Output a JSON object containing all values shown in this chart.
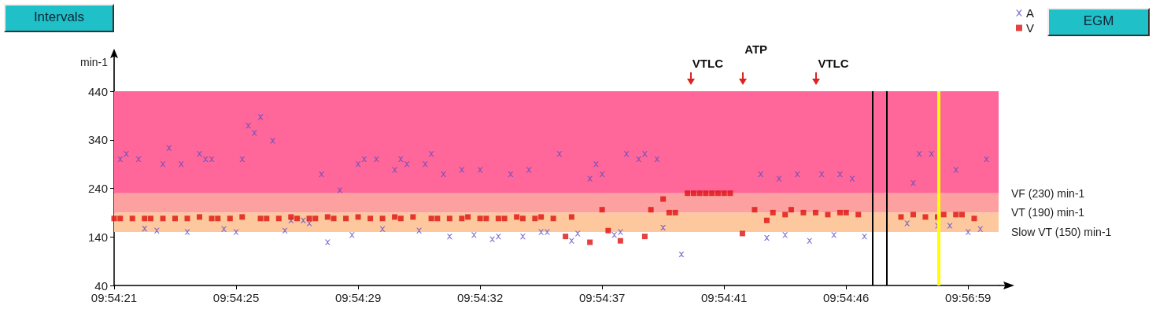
{
  "chart_data": {
    "type": "scatter",
    "ylabel": "min-1",
    "legend": "top right",
    "categories": [
      "09:54:21",
      null,
      null,
      null,
      null,
      null,
      null,
      null,
      null,
      null,
      null,
      null,
      null,
      null,
      null,
      null,
      null,
      null,
      null,
      null,
      "09:54:25",
      null,
      null,
      null,
      null,
      null,
      null,
      null,
      null,
      null,
      null,
      null,
      null,
      null,
      null,
      null,
      null,
      null,
      null,
      null,
      "09:54:29",
      null,
      null,
      null,
      null,
      null,
      null,
      null,
      null,
      null,
      null,
      null,
      null,
      null,
      null,
      null,
      null,
      null,
      null,
      null,
      "09:54:32",
      null,
      null,
      null,
      null,
      null,
      null,
      null,
      null,
      null,
      null,
      null,
      null,
      null,
      null,
      null,
      null,
      null,
      null,
      null,
      "09:54:37",
      null,
      null,
      null,
      null,
      null,
      null,
      null,
      null,
      null,
      null,
      null,
      null,
      null,
      null,
      null,
      null,
      null,
      null,
      null,
      "09:54:41",
      null,
      null,
      null,
      null,
      null,
      null,
      null,
      null,
      null,
      null,
      null,
      null,
      null,
      null,
      null,
      null,
      null,
      null,
      null,
      "09:54:46",
      null,
      null,
      null,
      null,
      null,
      null,
      null,
      null,
      null,
      null,
      null,
      null,
      null,
      null,
      null,
      null,
      null,
      null,
      null,
      "09:56:59",
      null,
      null,
      null,
      null,
      null
    ],
    "ylim": [
      40,
      440
    ],
    "yticks": [
      40,
      140,
      240,
      340,
      440
    ],
    "grid": false,
    "bands": [
      {
        "axis": "y",
        "from": 230,
        "to": 440,
        "label": "VF (230) min-1",
        "color": "#ff6699"
      },
      {
        "axis": "y",
        "from": 190,
        "to": 230,
        "label": "VT (190) min-1",
        "color": "#fda0a0"
      },
      {
        "axis": "y",
        "from": 150,
        "to": 190,
        "label": "Slow VT (150) min-1",
        "color": "#fdc89d"
      }
    ],
    "annotations": [
      "Intervals",
      "EGM",
      "VTLC",
      "ATP",
      "VTLC"
    ],
    "series": [
      {
        "name": "A",
        "color": "#5a4fc8",
        "marker": "cross",
        "values": [
          null,
          300,
          311,
          null,
          300,
          157,
          null,
          153,
          290,
          323,
          null,
          290,
          150,
          null,
          311,
          300,
          300,
          null,
          156,
          null,
          150,
          300,
          369,
          354,
          387,
          null,
          338,
          null,
          153,
          174,
          null,
          174,
          168,
          null,
          269,
          129,
          null,
          236,
          null,
          144,
          290,
          300,
          null,
          300,
          156,
          null,
          278,
          300,
          290,
          null,
          153,
          290,
          311,
          null,
          269,
          141,
          null,
          278,
          null,
          144,
          278,
          null,
          135,
          141,
          null,
          269,
          null,
          141,
          278,
          null,
          150,
          150,
          null,
          311,
          null,
          132,
          147,
          null,
          260,
          290,
          269,
          null,
          144,
          150,
          311,
          null,
          300,
          311,
          null,
          300,
          159,
          null,
          null,
          104,
          null,
          null,
          null,
          null,
          null,
          null,
          null,
          null,
          null,
          null,
          null,
          null,
          269,
          138,
          null,
          260,
          144,
          null,
          269,
          null,
          132,
          null,
          269,
          null,
          144,
          269,
          null,
          260,
          null,
          141,
          null,
          null,
          null,
          null,
          null,
          null,
          168,
          251,
          311,
          null,
          311,
          163,
          null,
          163,
          278,
          null,
          150,
          null,
          156,
          300,
          null,
          null
        ]
      },
      {
        "name": "V",
        "color": "#dd1111",
        "marker": "square",
        "values": [
          178,
          178,
          null,
          178,
          null,
          178,
          178,
          null,
          178,
          null,
          178,
          null,
          178,
          null,
          181,
          null,
          178,
          178,
          null,
          178,
          null,
          181,
          null,
          null,
          178,
          178,
          null,
          178,
          null,
          181,
          178,
          null,
          178,
          178,
          null,
          181,
          178,
          null,
          178,
          null,
          181,
          null,
          178,
          null,
          178,
          null,
          181,
          178,
          null,
          181,
          null,
          null,
          178,
          178,
          null,
          178,
          null,
          178,
          181,
          null,
          178,
          178,
          null,
          178,
          178,
          null,
          181,
          178,
          null,
          178,
          181,
          null,
          178,
          null,
          141,
          181,
          null,
          null,
          129,
          null,
          196,
          153,
          null,
          132,
          null,
          null,
          null,
          141,
          196,
          null,
          218,
          190,
          190,
          null,
          230,
          230,
          230,
          230,
          230,
          230,
          230,
          230,
          null,
          147,
          null,
          196,
          null,
          174,
          190,
          null,
          186,
          196,
          null,
          190,
          null,
          190,
          null,
          186,
          null,
          190,
          190,
          null,
          186,
          null,
          null,
          null,
          null,
          null,
          null,
          181,
          null,
          186,
          null,
          181,
          null,
          181,
          186,
          null,
          186,
          186,
          null,
          178,
          null,
          null,
          null,
          null
        ]
      }
    ]
  }
}
